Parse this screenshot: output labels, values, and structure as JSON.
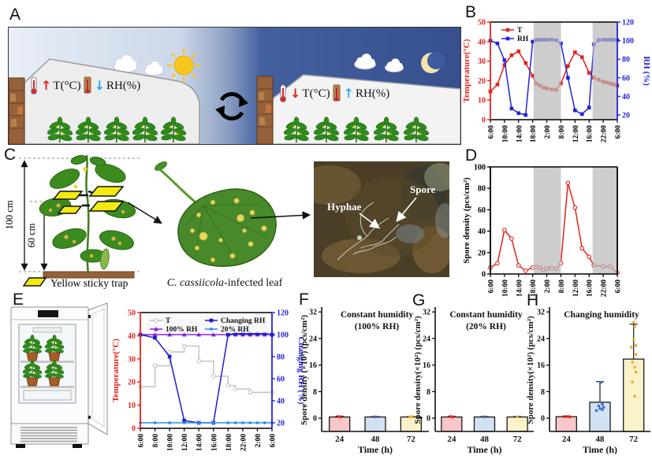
{
  "panels": {
    "A": {
      "letter": "A",
      "day": {
        "t_arrow": "↑",
        "t_label": "T(°C)",
        "rh_arrow": "↓",
        "rh_label": "RH(%)"
      },
      "night": {
        "t_arrow": "↓",
        "t_label": "T(°C)",
        "rh_arrow": "↑",
        "rh_label": "RH(%)"
      }
    },
    "B": {
      "letter": "B"
    },
    "C": {
      "letter": "C",
      "total_height": "100 cm",
      "trap_height": "60 cm",
      "trap_legend": "Yellow sticky trap",
      "leaf_caption_species": "C. cassiicola",
      "leaf_caption_rest": "-infected leaf",
      "micro": {
        "hyphae": "Hyphae",
        "spore": "Spore"
      }
    },
    "D": {
      "letter": "D"
    },
    "E": {
      "letter": "E"
    },
    "F": {
      "letter": "F"
    },
    "G": {
      "letter": "G"
    },
    "H": {
      "letter": "H"
    }
  },
  "chart_data": [
    {
      "id": "B",
      "type": "line",
      "x_ticks": {
        "hours": [
          0,
          4,
          8,
          12,
          20,
          26,
          30,
          34,
          40,
          48
        ],
        "labels": [
          "6:00",
          "10:00",
          "14:00",
          "18:00",
          "2:00",
          "8:00",
          "12:00",
          "16:00",
          "22:00",
          "6:00"
        ]
      },
      "bands": [
        [
          12.5,
          26
        ],
        [
          35.5,
          48
        ]
      ],
      "left_axis": {
        "label": "Temperature(°C)",
        "min": 0,
        "max": 50,
        "ticks": [
          0,
          10,
          20,
          30,
          40,
          50
        ],
        "color": "#e2231a"
      },
      "right_axis": {
        "label": "RH (%)",
        "min": 15,
        "max": 120,
        "ticks": [
          20,
          40,
          60,
          80,
          100,
          120
        ],
        "color": "#2323dd"
      },
      "legend": {
        "cols": 1,
        "order": [
          "T",
          "RH"
        ]
      },
      "series": [
        {
          "name": "T",
          "axis": "L",
          "color": "#e2231a",
          "marker": "sq",
          "points": [
            [
              0,
              14.5
            ],
            [
              2,
              18
            ],
            [
              4,
              28
            ],
            [
              6,
              33
            ],
            [
              8,
              35
            ],
            [
              10,
              29
            ],
            [
              12,
              22.5
            ],
            [
              14,
              18.5
            ],
            [
              16,
              17.5
            ],
            [
              18,
              16.5
            ],
            [
              20,
              16
            ],
            [
              22,
              15.5
            ],
            [
              24,
              15.3
            ],
            [
              26,
              18.5
            ],
            [
              28,
              27.5
            ],
            [
              30,
              34.5
            ],
            [
              32,
              32
            ],
            [
              34,
              24
            ],
            [
              36,
              21.5
            ],
            [
              38,
              20.5
            ],
            [
              40,
              19.5
            ],
            [
              42,
              19
            ],
            [
              44,
              18.5
            ],
            [
              46,
              18
            ],
            [
              48,
              17.5
            ]
          ]
        },
        {
          "name": "RH",
          "axis": "R",
          "color": "#2323dd",
          "marker": "sq",
          "points": [
            [
              0,
              100
            ],
            [
              2,
              97
            ],
            [
              4,
              79
            ],
            [
              6,
              27
            ],
            [
              8,
              22
            ],
            [
              10,
              20
            ],
            [
              12,
              99
            ],
            [
              14,
              100.5
            ],
            [
              16,
              101
            ],
            [
              18,
              101
            ],
            [
              20,
              101
            ],
            [
              22,
              101
            ],
            [
              24,
              100.5
            ],
            [
              26,
              97
            ],
            [
              28,
              60
            ],
            [
              30,
              25
            ],
            [
              32,
              21
            ],
            [
              34,
              28
            ],
            [
              36,
              96
            ],
            [
              38,
              100.5
            ],
            [
              40,
              101
            ],
            [
              42,
              101
            ],
            [
              44,
              101
            ],
            [
              46,
              101
            ],
            [
              48,
              100.5
            ]
          ]
        }
      ]
    },
    {
      "id": "D",
      "type": "line",
      "x_ticks": {
        "hours": [
          0,
          4,
          8,
          12,
          20,
          26,
          30,
          34,
          40,
          48
        ],
        "labels": [
          "6:00",
          "10:00",
          "14:00",
          "18:00",
          "2:00",
          "8:00",
          "12:00",
          "16:00",
          "22:00",
          "6:00"
        ]
      },
      "bands": [
        [
          12.5,
          26
        ],
        [
          35.5,
          48
        ]
      ],
      "left_axis": {
        "label": "Spore density (pcs/cm²)",
        "min": 0,
        "max": 100,
        "ticks": [
          0,
          20,
          40,
          60,
          80,
          100
        ],
        "color": "#000000"
      },
      "right_axis": null,
      "series": [
        {
          "name": "Spore density",
          "axis": "L",
          "color": "#e2231a",
          "marker": "o",
          "points": [
            [
              0,
              6
            ],
            [
              2,
              10
            ],
            [
              4,
              41
            ],
            [
              6,
              33
            ],
            [
              8,
              8
            ],
            [
              10,
              3
            ],
            [
              12,
              6
            ],
            [
              14,
              6.5
            ],
            [
              16,
              6
            ],
            [
              18,
              4
            ],
            [
              20,
              5
            ],
            [
              22,
              5.5
            ],
            [
              24,
              5
            ],
            [
              26,
              10
            ],
            [
              28,
              85
            ],
            [
              30,
              62
            ],
            [
              32,
              24
            ],
            [
              34,
              16
            ],
            [
              36,
              8
            ],
            [
              40,
              7
            ],
            [
              44,
              7
            ],
            [
              48,
              1
            ]
          ]
        }
      ]
    },
    {
      "id": "E",
      "type": "line",
      "x_ticks": {
        "hours": [
          0,
          2,
          4,
          6,
          8,
          10,
          12,
          16,
          20,
          24
        ],
        "labels": [
          "6:00",
          "8:00",
          "10:00",
          "12:00",
          "14:00",
          "16:00",
          "18:00",
          "22:00",
          "2:00",
          "6:00"
        ]
      },
      "bands": [],
      "left_axis": {
        "label": "Temperature(°C)",
        "min": 0,
        "max": 50,
        "ticks": [
          0,
          10,
          20,
          30,
          40,
          50
        ],
        "color": "#e2231a"
      },
      "right_axis": {
        "label": "Changing RH (%)",
        "min": 15,
        "max": 120,
        "ticks": [
          20,
          40,
          60,
          80,
          100,
          120
        ],
        "color": "#2323dd"
      },
      "legend": {
        "cols": 2,
        "bg": true,
        "order": [
          "T",
          "100% RH",
          "Changing RH",
          "20% RH"
        ]
      },
      "series": [
        {
          "name": "T",
          "axis": "L",
          "color": "#c4c4c4",
          "marker": "o",
          "step": true,
          "points": [
            [
              0,
              18
            ],
            [
              2,
              27
            ],
            [
              4,
              33
            ],
            [
              6,
              35.5
            ],
            [
              8,
              29
            ],
            [
              10,
              22.5
            ],
            [
              12,
              18.5
            ],
            [
              14,
              17
            ],
            [
              18,
              15.5
            ],
            [
              24,
              15.5
            ]
          ]
        },
        {
          "name": "100% RH",
          "axis": "R",
          "color": "#8326d8",
          "marker": "tri",
          "points": [
            [
              0,
              100
            ],
            [
              2,
              100
            ],
            [
              4,
              100
            ],
            [
              6,
              100
            ],
            [
              8,
              100
            ],
            [
              10,
              100
            ],
            [
              12,
              100
            ],
            [
              14,
              100
            ],
            [
              16,
              100
            ],
            [
              18,
              100
            ],
            [
              20,
              100
            ],
            [
              22,
              100
            ],
            [
              24,
              100
            ]
          ]
        },
        {
          "name": "Changing RH",
          "axis": "R",
          "color": "#1c1cd0",
          "marker": "sq",
          "points": [
            [
              0,
              100
            ],
            [
              2,
              97
            ],
            [
              4,
              80
            ],
            [
              6,
              22
            ],
            [
              8,
              20
            ],
            [
              10,
              20
            ],
            [
              12,
              100
            ],
            [
              14,
              101
            ],
            [
              16,
              101
            ],
            [
              18,
              101
            ],
            [
              20,
              101
            ],
            [
              22,
              101
            ],
            [
              24,
              100
            ]
          ]
        },
        {
          "name": "20% RH",
          "axis": "R",
          "color": "#2e8fe8",
          "marker": "dot",
          "points": [
            [
              0,
              20
            ],
            [
              2,
              20
            ],
            [
              4,
              20
            ],
            [
              6,
              20
            ],
            [
              8,
              20
            ],
            [
              10,
              20
            ],
            [
              12,
              20
            ],
            [
              14,
              20
            ],
            [
              16,
              20
            ],
            [
              18,
              20
            ],
            [
              20,
              20
            ],
            [
              22,
              20
            ],
            [
              24,
              20
            ]
          ]
        }
      ]
    },
    {
      "id": "F",
      "type": "bar",
      "title_lines": [
        "Constant humidity",
        "(100% RH)"
      ],
      "ylabel": "Spore density (×10²) (pcs/cm²)",
      "xlabel": "Time (h)",
      "yticks": [
        0,
        8,
        16,
        24,
        32
      ],
      "ymin": -4,
      "ymax": 33,
      "categories": [
        "24",
        "48",
        "72"
      ],
      "bar_colors": [
        "#f9c6ca",
        "#d2e2f2",
        "#fcf2ca"
      ],
      "dot_colors": [
        "#e2231a",
        "#3f6cd0",
        "#f0a922"
      ],
      "values": [
        0.35,
        0.35,
        0.35
      ],
      "errors": [
        0.25,
        0.15,
        0.15
      ],
      "dots": [
        [
          [
            -1,
            0.5
          ],
          [
            1,
            0.4
          ]
        ],
        [
          [
            0,
            0.4
          ]
        ],
        [
          [
            -1,
            0.4
          ],
          [
            1,
            0.45
          ]
        ]
      ]
    },
    {
      "id": "G",
      "type": "bar",
      "title_lines": [
        "Constant humidity",
        "(20% RH)"
      ],
      "ylabel": "Spore density(×10²) (pcs/cm²)",
      "xlabel": "Time (h)",
      "yticks": [
        0,
        8,
        16,
        24,
        32
      ],
      "ymin": -4,
      "ymax": 33,
      "categories": [
        "24",
        "48",
        "72"
      ],
      "bar_colors": [
        "#f9c6ca",
        "#d2e2f2",
        "#fcf2ca"
      ],
      "dot_colors": [
        "#e2231a",
        "#3f6cd0",
        "#f0a922"
      ],
      "values": [
        0.35,
        0.35,
        0.35
      ],
      "errors": [
        0.2,
        0.15,
        0.15
      ],
      "dots": [
        [
          [
            -1,
            0.5
          ],
          [
            1,
            0.4
          ]
        ],
        [
          [
            0,
            0.4
          ]
        ],
        [
          [
            0,
            0.4
          ]
        ]
      ]
    },
    {
      "id": "H",
      "type": "bar",
      "title_lines": [
        "Changing humidity"
      ],
      "ylabel": "Spore density(×10²) (pcs/cm²)",
      "xlabel": "Time (h)",
      "yticks": [
        0,
        8,
        16,
        24,
        32
      ],
      "ymin": -4,
      "ymax": 33,
      "categories": [
        "24",
        "48",
        "72"
      ],
      "bar_colors": [
        "#f9c6ca",
        "#d2e2f2",
        "#fcf2ca"
      ],
      "dot_colors": [
        "#e2231a",
        "#3f6cd0",
        "#f0a922"
      ],
      "values": [
        0.45,
        4.8,
        17.8
      ],
      "errors": [
        0.2,
        6.2,
        10.5
      ],
      "dots": [
        [
          [
            -2,
            0.45
          ],
          [
            1,
            0.5
          ],
          [
            3,
            0.4
          ]
        ],
        [
          [
            -3,
            2.3
          ],
          [
            2,
            2.6
          ],
          [
            0,
            2.9
          ],
          [
            3,
            3.3
          ],
          [
            -1,
            3.7
          ],
          [
            2,
            4.2
          ],
          [
            1,
            10.8
          ]
        ],
        [
          [
            1,
            6.6
          ],
          [
            -1,
            10.9
          ],
          [
            2,
            13.9
          ],
          [
            1,
            15.3
          ],
          [
            -1,
            16.9
          ],
          [
            2,
            19.2
          ],
          [
            -2,
            21.4
          ],
          [
            2,
            21.9
          ],
          [
            0,
            23.9
          ],
          [
            1,
            27.6
          ],
          [
            0,
            28.9
          ]
        ]
      ]
    }
  ]
}
